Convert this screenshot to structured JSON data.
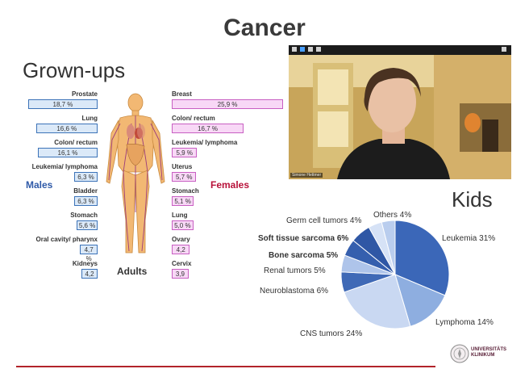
{
  "slide": {
    "title": "Cancer",
    "grownups_heading": "Grown-ups",
    "kids_heading": "Kids",
    "males_label": "Males",
    "females_label": "Females",
    "adults_label": "Adults"
  },
  "males": [
    {
      "name": "Prostate",
      "value": "18,7 %",
      "pct": 18.7
    },
    {
      "name": "Lung",
      "value": "16,6 %",
      "pct": 16.6
    },
    {
      "name": "Colon/ rectum",
      "value": "16,1 %",
      "pct": 16.1
    },
    {
      "name": "Leukemia/ lymphoma",
      "value": "6,3 %",
      "pct": 6.3
    },
    {
      "name": "Bladder",
      "value": "6,3 %",
      "pct": 6.3
    },
    {
      "name": "Stomach",
      "value": "5,6 %",
      "pct": 5.6
    },
    {
      "name": "Oral cavity/ pharynx",
      "value": "4,7 %",
      "pct": 4.7
    },
    {
      "name": "Kidneys",
      "value": "4,2",
      "pct": 4.2
    }
  ],
  "females": [
    {
      "name": "Breast",
      "value": "25,9 %",
      "pct": 25.9
    },
    {
      "name": "Colon/ rectum",
      "value": "16,7 %",
      "pct": 16.7
    },
    {
      "name": "Leukemia/ lymphoma",
      "value": "5,9 %",
      "pct": 5.9
    },
    {
      "name": "Uterus",
      "value": "5,7 %",
      "pct": 5.7
    },
    {
      "name": "Stomach",
      "value": "5,1 %",
      "pct": 5.1
    },
    {
      "name": "Lung",
      "value": "5,0 %",
      "pct": 5.0
    },
    {
      "name": "Ovary",
      "value": "4,2",
      "pct": 4.2
    },
    {
      "name": "Cervix",
      "value": "3,9",
      "pct": 3.9
    }
  ],
  "video": {
    "participant_name": "Simone Hettmer"
  },
  "kids_pie": {
    "slices": [
      {
        "label": "Leukemia 31%",
        "value": 31,
        "color": "#3b67b8"
      },
      {
        "label": "Lymphoma 14%",
        "value": 14,
        "color": "#8eaee0"
      },
      {
        "label": "CNS tumors 24%",
        "value": 24,
        "color": "#c9d8f2"
      },
      {
        "label": "Neuroblastoma 6%",
        "value": 6,
        "color": "#3f69b6"
      },
      {
        "label": "Renal tumors 5%",
        "value": 5,
        "color": "#aec4ea"
      },
      {
        "label": "Bone sarcoma 5%",
        "value": 5,
        "color": "#355fae"
      },
      {
        "label": "Soft tissue sarcoma 6%",
        "value": 6,
        "color": "#2f57a5"
      },
      {
        "label": "Germ cell tumors 4%",
        "value": 4,
        "color": "#d6e2f6"
      },
      {
        "label": "Others 4%",
        "value": 4,
        "color": "#b9cdee"
      }
    ]
  },
  "footer": {
    "logo_line1": "UNIVERSITÄTS",
    "logo_line2": "KLINIKUM"
  },
  "colors": {
    "male_bar": "#dbe9f8",
    "female_bar": "#f8d8f6",
    "male_text": "#2f5aa8",
    "female_text": "#b8123a",
    "accent_red": "#b2232a"
  }
}
